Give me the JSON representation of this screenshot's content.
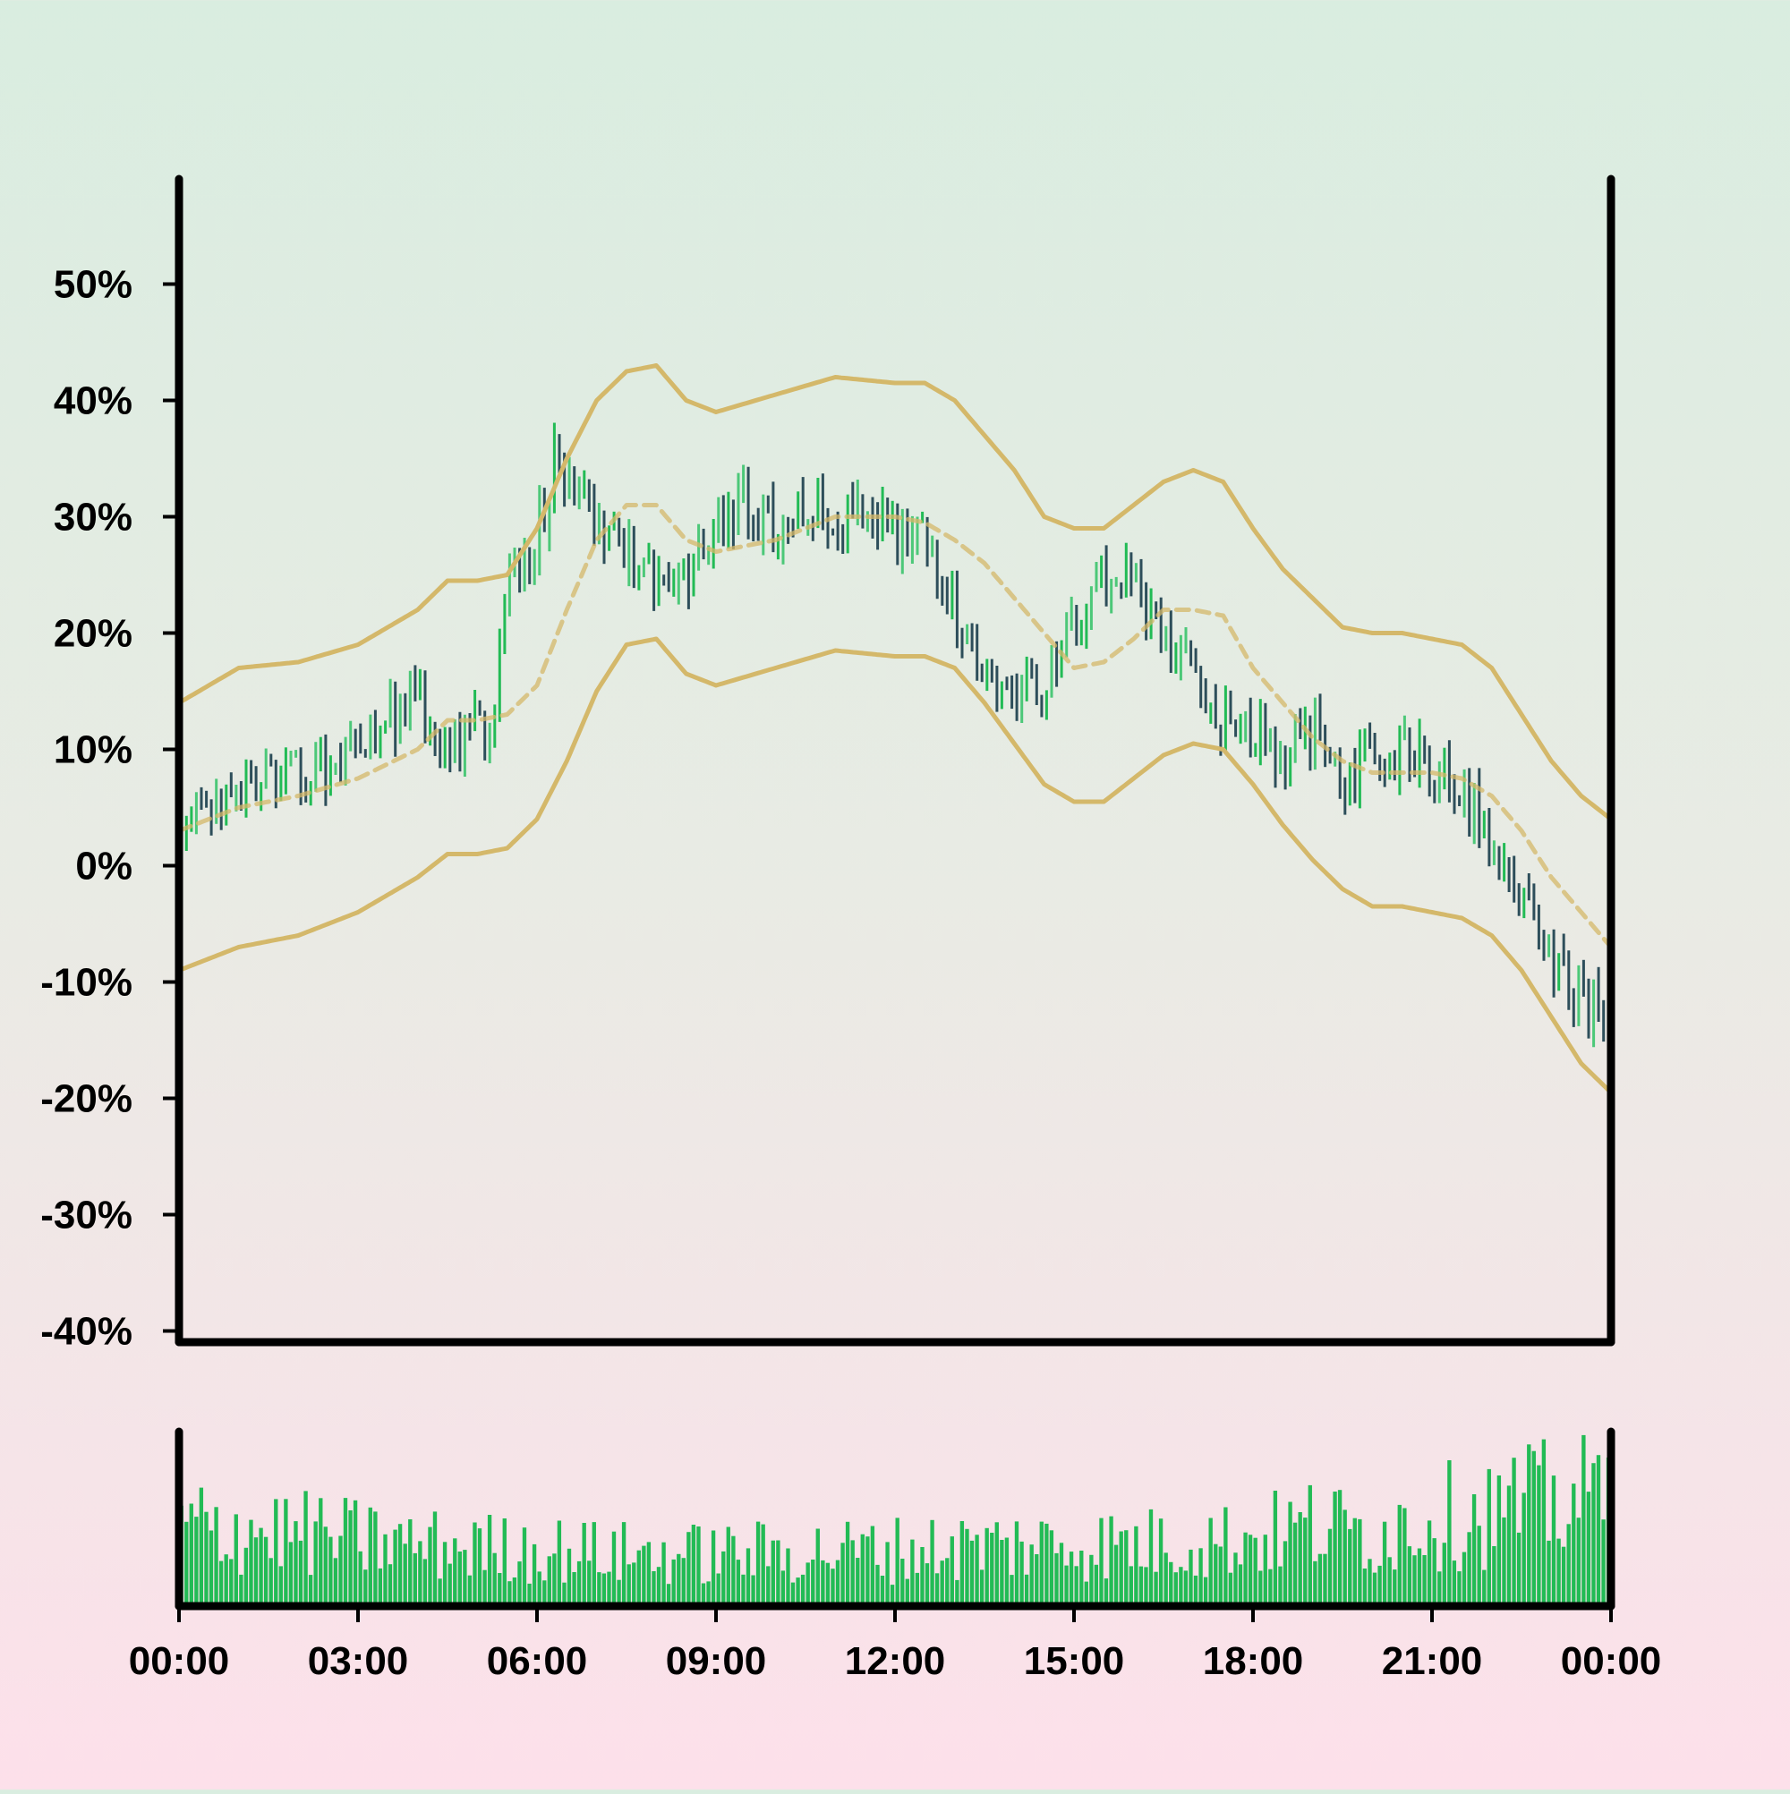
{
  "chart_data": {
    "type": "ohlc",
    "title": "",
    "xlabel": "",
    "ylabel": "",
    "y_ticks": [
      "50%",
      "40%",
      "30%",
      "20%",
      "10%",
      "0%",
      "-10%",
      "-20%",
      "-30%",
      "-40%"
    ],
    "ylim": [
      -40,
      55
    ],
    "x_ticks": [
      "00:00",
      "03:00",
      "06:00",
      "09:00",
      "12:00",
      "15:00",
      "18:00",
      "21:00",
      "00:00"
    ],
    "x_range_hours": [
      0,
      24
    ],
    "grid": false,
    "legend": "none",
    "colors": {
      "up": "#4cc878",
      "up_strong": "#22bb55",
      "down": "#2d4e5a",
      "band": "#d4b86a",
      "volume": "#22bb55",
      "axis": "#000000"
    },
    "price_anchors": {
      "hours": [
        0,
        0.5,
        1,
        2,
        3,
        4,
        4.5,
        5,
        5.3,
        5.5,
        6,
        6.3,
        6.5,
        7,
        7.5,
        8,
        8.5,
        9,
        9.5,
        10,
        10.5,
        11,
        11.5,
        12,
        12.5,
        13,
        13.5,
        14,
        14.5,
        15,
        15.5,
        16,
        16.5,
        17,
        17.5,
        18,
        18.5,
        19,
        19.5,
        20,
        20.5,
        21,
        21.5,
        22,
        22.5,
        23,
        23.5,
        24
      ],
      "values": [
        4,
        5,
        7,
        8,
        10,
        14,
        10,
        12,
        12,
        25,
        28,
        35,
        32,
        30,
        27,
        25,
        24,
        30,
        31,
        29,
        32,
        29,
        30,
        29,
        28,
        22,
        18,
        15,
        15,
        20,
        25,
        24,
        20,
        16,
        12,
        11,
        9,
        11,
        8,
        9,
        10,
        8,
        6,
        3,
        -2,
        -8,
        -12,
        -13
      ]
    },
    "upper_band": {
      "hours": [
        0,
        1,
        2,
        3,
        4,
        4.5,
        5,
        5.5,
        6,
        6.5,
        7,
        7.5,
        8,
        8.5,
        9,
        10,
        11,
        12,
        12.5,
        13,
        13.5,
        14,
        14.5,
        15,
        15.5,
        16,
        16.5,
        17,
        17.5,
        18,
        18.5,
        19,
        19.5,
        20,
        20.5,
        21,
        21.5,
        22,
        22.5,
        23,
        23.5,
        24
      ],
      "values": [
        14,
        17,
        17.5,
        19,
        22,
        24.5,
        24.5,
        25,
        29,
        35,
        40,
        42.5,
        43,
        40,
        39,
        40.5,
        42,
        41.5,
        41.5,
        40,
        37,
        34,
        30,
        29,
        29,
        31,
        33,
        34,
        33,
        29,
        25.5,
        23,
        20.5,
        20,
        20,
        19.5,
        19,
        17,
        13,
        9,
        6,
        4
      ]
    },
    "mid_band": {
      "hours": [
        0,
        1,
        2,
        3,
        4,
        4.5,
        5,
        5.5,
        6,
        6.5,
        7,
        7.5,
        8,
        8.5,
        9,
        10,
        11,
        12,
        12.5,
        13,
        13.5,
        14,
        14.5,
        15,
        15.5,
        16,
        16.5,
        17,
        17.5,
        18,
        18.5,
        19,
        19.5,
        20,
        20.5,
        21,
        21.5,
        22,
        22.5,
        23,
        23.5,
        24
      ],
      "values": [
        3,
        5,
        6,
        7.5,
        10,
        12.5,
        12.5,
        13,
        15.5,
        22,
        28,
        31,
        31,
        28,
        27,
        28,
        30,
        30,
        29.5,
        28,
        26,
        23,
        20,
        17,
        17.5,
        19.5,
        22,
        22,
        21.5,
        17,
        14,
        11,
        9,
        8,
        8,
        8,
        7.5,
        6,
        3,
        -1,
        -4,
        -7
      ]
    },
    "lower_band": {
      "hours": [
        0,
        1,
        2,
        3,
        4,
        4.5,
        5,
        5.5,
        6,
        6.5,
        7,
        7.5,
        8,
        8.5,
        9,
        10,
        11,
        12,
        12.5,
        13,
        13.5,
        14,
        14.5,
        15,
        15.5,
        16,
        16.5,
        17,
        17.5,
        18,
        18.5,
        19,
        19.5,
        20,
        20.5,
        21,
        21.5,
        22,
        22.5,
        23,
        23.5,
        24
      ],
      "values": [
        -9,
        -7,
        -6,
        -4,
        -1,
        1,
        1,
        1.5,
        4,
        9,
        15,
        19,
        19.5,
        16.5,
        15.5,
        17,
        18.5,
        18,
        18,
        17,
        14,
        10.5,
        7,
        5.5,
        5.5,
        7.5,
        9.5,
        10.5,
        10,
        7,
        3.5,
        0.5,
        -2,
        -3.5,
        -3.5,
        -4,
        -4.5,
        -6,
        -9,
        -13,
        -17,
        -19.5
      ]
    },
    "volume_anchors": {
      "hours": [
        0,
        2,
        4,
        6,
        8,
        10,
        12,
        14,
        16,
        18,
        19,
        20,
        21,
        22,
        23,
        24
      ],
      "values": [
        50,
        45,
        38,
        35,
        32,
        33,
        35,
        38,
        38,
        42,
        50,
        45,
        55,
        58,
        65,
        70
      ]
    }
  }
}
